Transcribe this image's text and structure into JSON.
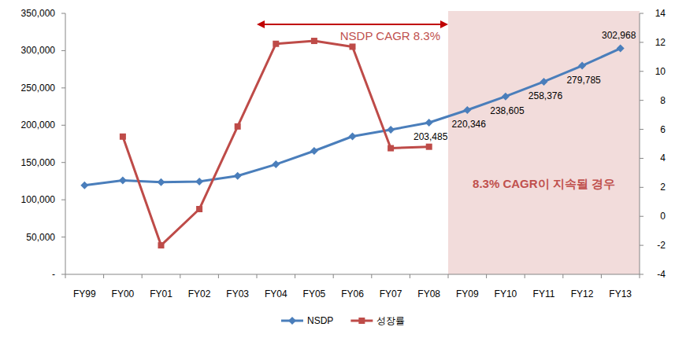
{
  "chart_data": {
    "type": "line",
    "categories": [
      "FY99",
      "FY00",
      "FY01",
      "FY02",
      "FY03",
      "FY04",
      "FY05",
      "FY06",
      "FY07",
      "FY08",
      "FY09",
      "FY10",
      "FY11",
      "FY12",
      "FY13"
    ],
    "series": [
      {
        "name": "NSDP",
        "color": "#4a7ebb",
        "marker": "diamond",
        "axis": "y",
        "values": [
          119500,
          126000,
          123500,
          124500,
          132000,
          147500,
          165500,
          185000,
          194000,
          203485,
          220346,
          238605,
          258376,
          279785,
          302968
        ],
        "value_labels": [
          null,
          null,
          null,
          null,
          null,
          null,
          null,
          null,
          null,
          "203,485",
          "220,346",
          "238,605",
          "258,376",
          "279,785",
          "302,968"
        ]
      },
      {
        "name": "성장률",
        "color": "#be4b48",
        "marker": "square",
        "axis": "y2",
        "values": [
          null,
          5.5,
          -2.0,
          0.5,
          6.2,
          11.9,
          12.1,
          11.7,
          4.7,
          4.8,
          null,
          null,
          null,
          null,
          null
        ]
      }
    ],
    "ylim": [
      0,
      350000
    ],
    "yticks": [
      {
        "value": 0,
        "label": "-"
      },
      {
        "value": 50000,
        "label": "50,000"
      },
      {
        "value": 100000,
        "label": "100,000"
      },
      {
        "value": 150000,
        "label": "150,000"
      },
      {
        "value": 200000,
        "label": "200,000"
      },
      {
        "value": 250000,
        "label": "250,000"
      },
      {
        "value": 300000,
        "label": "300,000"
      },
      {
        "value": 350000,
        "label": "350,000"
      }
    ],
    "y2lim": [
      -4,
      14
    ],
    "y2ticks": [
      -4,
      -2,
      0,
      2,
      4,
      6,
      8,
      10,
      12,
      14
    ],
    "grid": false,
    "data_labels": true,
    "legend": "bottom",
    "annotations": [
      {
        "type": "arrow",
        "text": "NSDP CAGR 8.3%",
        "from": "FY04",
        "to": "FY08",
        "color": "#c0504d"
      },
      {
        "type": "band",
        "text": "8.3% CAGR이 지속될 경우",
        "from": "FY09",
        "to": "FY13",
        "color": "#f2dcdb"
      }
    ]
  }
}
